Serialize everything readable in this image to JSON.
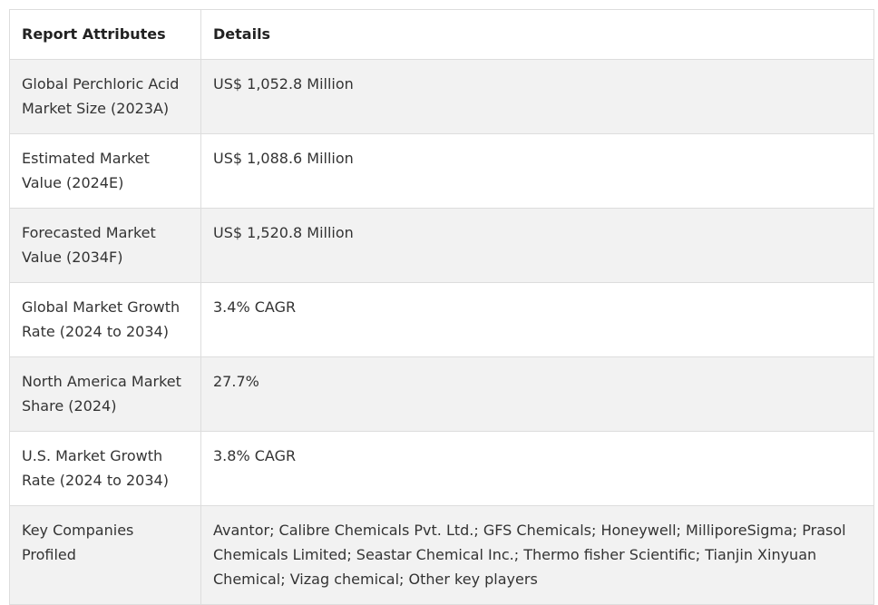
{
  "table": {
    "headers": [
      "Report Attributes",
      "Details"
    ],
    "rows": [
      {
        "attribute": "Global Perchloric Acid Market Size (2023A)",
        "details": "US$ 1,052.8 Million"
      },
      {
        "attribute": "Estimated Market Value (2024E)",
        "details": "US$ 1,088.6 Million"
      },
      {
        "attribute": "Forecasted Market Value (2034F)",
        "details": "US$ 1,520.8 Million"
      },
      {
        "attribute": "Global Market Growth Rate (2024 to 2034)",
        "details": "3.4% CAGR"
      },
      {
        "attribute": "North America Market Share (2024)",
        "details": "27.7%"
      },
      {
        "attribute": "U.S. Market Growth Rate (2024 to 2034)",
        "details": "3.8% CAGR"
      },
      {
        "attribute": "Key Companies Profiled",
        "details": "Avantor; Calibre Chemicals Pvt. Ltd.; GFS Chemicals; Honeywell; MilliporeSigma; Prasol Chemicals Limited; Seastar Chemical Inc.; Thermo fisher Scientific; Tianjin Xinyuan Chemical; Vizag chemical; Other key players"
      }
    ]
  },
  "colors": {
    "border": "#dddddd",
    "shaded_row": "#f2f2f2",
    "text": "#333333"
  }
}
